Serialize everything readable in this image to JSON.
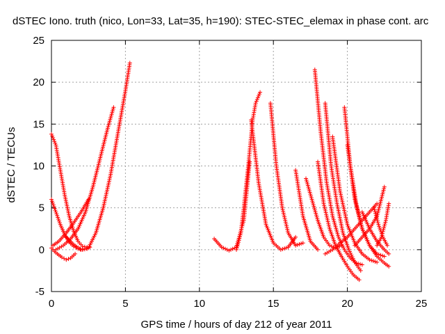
{
  "chart_data": {
    "type": "scatter",
    "title": "dSTEC Iono. truth (nico, Lon=33, Lat=35, h=190): STEC-STEC_elemax in phase cont. arc",
    "xlabel": "GPS time / hours of day 212 of year 2011",
    "ylabel": "dSTEC  / TECUs",
    "xlim": [
      0,
      25
    ],
    "ylim": [
      -5,
      25
    ],
    "xticks": [
      "0",
      "5",
      "10",
      "15",
      "20",
      "25"
    ],
    "yticks": [
      "-5",
      "0",
      "5",
      "10",
      "15",
      "20",
      "25"
    ],
    "grid": true,
    "marker": "+",
    "series_color": "#ff0000",
    "series": [
      {
        "x": [
          0.0,
          0.3,
          0.6,
          0.9,
          1.2,
          1.5,
          1.8,
          2.1,
          2.4
        ],
        "y": [
          13.8,
          12.5,
          9.5,
          6.5,
          4.0,
          2.2,
          1.0,
          0.4,
          0.3
        ]
      },
      {
        "x": [
          0.0,
          0.3,
          0.6,
          0.9,
          1.2,
          1.5,
          1.8,
          2.1,
          2.4,
          2.6
        ],
        "y": [
          6.0,
          4.5,
          3.0,
          1.8,
          0.9,
          0.4,
          0.1,
          0.0,
          0.1,
          0.3
        ]
      },
      {
        "x": [
          0.0,
          0.2,
          0.4,
          0.7,
          1.0,
          1.3,
          1.6
        ],
        "y": [
          0.2,
          -0.2,
          -0.5,
          -0.9,
          -1.2,
          -1.0,
          -0.5
        ]
      },
      {
        "x": [
          0.1,
          0.5,
          1.0,
          1.5,
          2.0,
          2.5
        ],
        "y": [
          0.5,
          1.0,
          2.0,
          3.2,
          4.5,
          6.0
        ]
      },
      {
        "x": [
          0.3,
          0.8,
          1.3,
          1.8,
          2.3,
          2.8,
          3.3,
          3.8,
          4.2
        ],
        "y": [
          0.0,
          0.5,
          1.3,
          2.5,
          4.5,
          7.5,
          11.0,
          14.5,
          17.0
        ]
      },
      {
        "x": [
          1.0,
          1.5,
          2.0,
          2.5,
          3.0,
          3.5,
          4.0,
          4.5,
          5.0,
          5.3
        ],
        "y": [
          1.5,
          0.6,
          0.0,
          0.2,
          2.0,
          5.0,
          9.0,
          14.0,
          19.0,
          22.3
        ]
      },
      {
        "x": [
          11.0,
          11.5,
          12.0,
          12.5,
          13.0,
          13.4
        ],
        "y": [
          1.3,
          0.3,
          -0.1,
          0.3,
          3.5,
          10.5
        ]
      },
      {
        "x": [
          12.5,
          12.8,
          13.0,
          13.3,
          13.6,
          13.8,
          14.1
        ],
        "y": [
          0.0,
          2.0,
          5.0,
          10.0,
          15.5,
          17.5,
          18.8
        ]
      },
      {
        "x": [
          13.5,
          14.0,
          14.5,
          15.0,
          15.5,
          16.0,
          16.5
        ],
        "y": [
          15.5,
          8.0,
          3.0,
          0.8,
          0.0,
          0.3,
          1.5
        ]
      },
      {
        "x": [
          14.8,
          15.2,
          15.6,
          16.0,
          16.5,
          17.0
        ],
        "y": [
          17.5,
          10.0,
          5.0,
          2.0,
          0.5,
          0.8
        ]
      },
      {
        "x": [
          16.5,
          17.0,
          17.5,
          18.0
        ],
        "y": [
          9.5,
          4.0,
          1.0,
          0.0
        ]
      },
      {
        "x": [
          17.2,
          17.6,
          18.0,
          18.4,
          18.8,
          19.2,
          19.6
        ],
        "y": [
          8.5,
          6.0,
          3.5,
          1.5,
          0.5,
          0.2,
          0.5
        ]
      },
      {
        "x": [
          17.8,
          18.2,
          18.6,
          19.0,
          19.4,
          19.8,
          20.2,
          20.6,
          21.0
        ],
        "y": [
          21.5,
          14.0,
          8.0,
          4.0,
          1.5,
          0.0,
          -1.0,
          -1.6,
          -1.8
        ]
      },
      {
        "x": [
          18.0,
          18.4,
          18.8,
          19.2,
          19.6,
          20.0,
          20.4,
          20.8
        ],
        "y": [
          10.5,
          5.5,
          2.5,
          0.5,
          -0.8,
          -2.0,
          -3.0,
          -3.6
        ]
      },
      {
        "x": [
          18.5,
          18.9,
          19.3,
          19.7,
          20.1,
          20.5,
          20.9
        ],
        "y": [
          17.5,
          10.0,
          5.5,
          2.0,
          0.0,
          -1.5,
          -2.5
        ]
      },
      {
        "x": [
          19.0,
          19.5,
          20.0,
          20.5,
          21.0,
          21.5,
          22.0
        ],
        "y": [
          13.5,
          7.0,
          3.0,
          0.8,
          -0.5,
          -1.2,
          -1.5
        ]
      },
      {
        "x": [
          19.8,
          20.2,
          20.6,
          21.0,
          21.5,
          22.0,
          22.5,
          22.8
        ],
        "y": [
          17.0,
          10.0,
          5.5,
          2.5,
          0.5,
          -0.8,
          -1.6,
          -2.0
        ]
      },
      {
        "x": [
          20.0,
          20.5,
          21.0,
          21.5,
          22.0,
          22.5
        ],
        "y": [
          12.5,
          6.0,
          2.5,
          0.5,
          -0.5,
          -0.8
        ]
      },
      {
        "x": [
          18.5,
          19.0,
          19.5,
          20.0,
          20.5,
          21.0,
          21.5,
          22.0
        ],
        "y": [
          -0.5,
          0.0,
          0.8,
          1.5,
          2.5,
          3.5,
          4.5,
          5.5
        ]
      },
      {
        "x": [
          20.5,
          21.0,
          21.5,
          22.0,
          22.5
        ],
        "y": [
          0.5,
          1.5,
          2.5,
          4.0,
          7.5
        ]
      },
      {
        "x": [
          21.0,
          21.5,
          22.0,
          22.5,
          22.8
        ],
        "y": [
          4.5,
          2.5,
          1.0,
          0.0,
          -0.5
        ]
      },
      {
        "x": [
          21.8,
          22.1,
          22.4,
          22.7
        ],
        "y": [
          5.0,
          3.0,
          1.5,
          0.5
        ]
      },
      {
        "x": [
          22.0,
          22.3,
          22.6,
          22.8
        ],
        "y": [
          0.5,
          1.5,
          3.5,
          5.5
        ]
      }
    ]
  }
}
